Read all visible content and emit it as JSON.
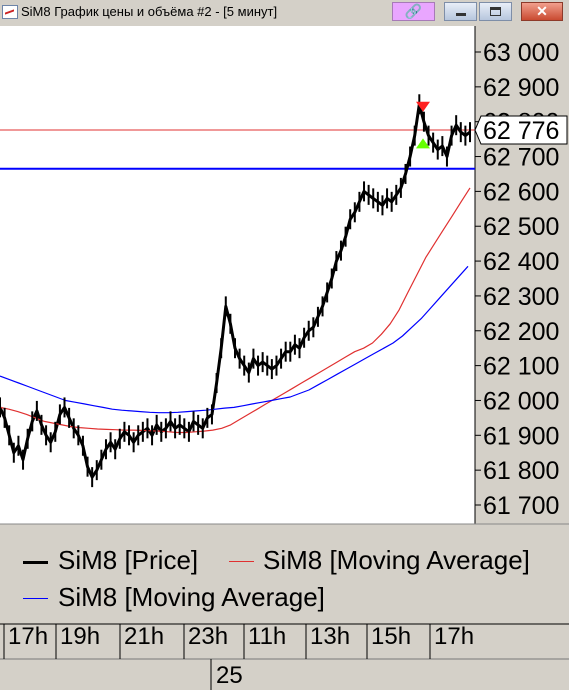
{
  "window": {
    "title": "SiM8 График цены и объёма #2 - [5 минут]",
    "buttons": [
      "minimize-icon",
      "maximize-icon",
      "close-icon"
    ],
    "link_icon": "link-icon"
  },
  "chart_data": {
    "type": "line",
    "title": "",
    "ylim": [
      61650,
      63050
    ],
    "yticks": [
      "63 000",
      "62 900",
      "62 800",
      "62 700",
      "62 600",
      "62 500",
      "62 400",
      "62 300",
      "62 200",
      "62 100",
      "62 000",
      "61 900",
      "61 800",
      "61 700"
    ],
    "ytick_values": [
      63000,
      62900,
      62800,
      62700,
      62600,
      62500,
      62400,
      62300,
      62200,
      62100,
      62000,
      61900,
      61800,
      61700
    ],
    "last_price_label": "62 776",
    "last_price": 62776,
    "xticks": [
      "17h",
      "19h",
      "21h",
      "23h",
      "11h",
      "13h",
      "15h",
      "17h"
    ],
    "date_label": "25",
    "horizontal_lines": [
      {
        "value": 62776,
        "color": "#e03030"
      },
      {
        "value": 62665,
        "color": "#0000ff"
      }
    ],
    "series": [
      {
        "name": "SiM8 [Price]",
        "color": "#000000",
        "values": [
          61980,
          61950,
          61900,
          61850,
          61870,
          61830,
          61890,
          61940,
          61970,
          61930,
          61900,
          61880,
          61910,
          61960,
          61980,
          61950,
          61920,
          61900,
          61870,
          61810,
          61780,
          61800,
          61830,
          61860,
          61880,
          61860,
          61890,
          61910,
          61900,
          61880,
          61900,
          61910,
          61920,
          61900,
          61930,
          61910,
          61920,
          61940,
          61920,
          61930,
          61920,
          61910,
          61940,
          61930,
          61920,
          61950,
          61960,
          62050,
          62150,
          62270,
          62220,
          62150,
          62120,
          62100,
          62080,
          62120,
          62100,
          62110,
          62100,
          62090,
          62100,
          62120,
          62140,
          62140,
          62160,
          62150,
          62180,
          62200,
          62210,
          62240,
          62270,
          62310,
          62350,
          62400,
          62430,
          62470,
          62520,
          62540,
          62570,
          62600,
          62590,
          62580,
          62570,
          62560,
          62580,
          62570,
          62590,
          62610,
          62650,
          62700,
          62760,
          62850,
          62800,
          62760,
          62740,
          62720,
          62730,
          62700,
          62760,
          62790,
          62770,
          62760,
          62770
        ]
      },
      {
        "name": "SiM8 [Moving Average]",
        "color": "#e03030",
        "values": [
          61980,
          61975,
          61968,
          61960,
          61950,
          61940,
          61935,
          61930,
          61925,
          61922,
          61920,
          61918,
          61917,
          61916,
          61915,
          61915,
          61914,
          61913,
          61912,
          61910,
          61908,
          61908,
          61910,
          61912,
          61915,
          61920,
          61930,
          61945,
          61960,
          61975,
          61990,
          62005,
          62020,
          62035,
          62050,
          62065,
          62080,
          62095,
          62110,
          62125,
          62140,
          62150,
          62165,
          62190,
          62220,
          62260,
          62310,
          62360,
          62410,
          62450,
          62490,
          62530,
          62570,
          62610
        ]
      },
      {
        "name": "SiM8 [Moving Average]",
        "color": "#0000ff",
        "values": [
          62070,
          62060,
          62050,
          62040,
          62030,
          62020,
          62010,
          62000,
          61995,
          61990,
          61985,
          61980,
          61975,
          61972,
          61970,
          61968,
          61966,
          61965,
          61965,
          61966,
          61968,
          61970,
          61972,
          61975,
          61978,
          61980,
          61985,
          61990,
          61995,
          62000,
          62005,
          62010,
          62020,
          62030,
          62045,
          62060,
          62075,
          62090,
          62105,
          62120,
          62135,
          62150,
          62165,
          62185,
          62210,
          62235,
          62265,
          62295,
          62325,
          62355,
          62385
        ]
      }
    ],
    "markers": [
      {
        "type": "sell-arrow",
        "color": "#ff2020",
        "value": 62840
      },
      {
        "type": "buy-arrow",
        "color": "#66ff00",
        "value": 62735
      }
    ],
    "legend": [
      {
        "label": "SiM8 [Price]",
        "color": "#000000"
      },
      {
        "label": "SiM8 [Moving Average]",
        "color": "#e03030"
      },
      {
        "label": "SiM8 [Moving Average]",
        "color": "#0000ff"
      }
    ]
  }
}
